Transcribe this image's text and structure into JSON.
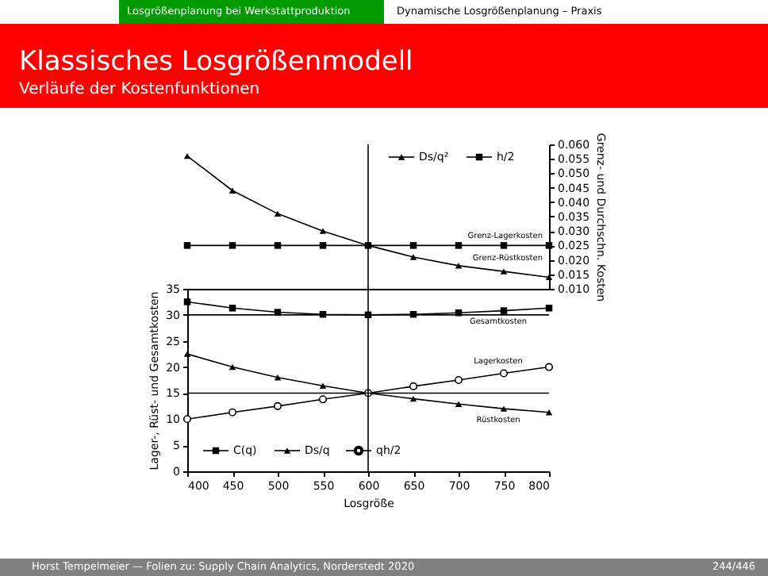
{
  "chart_data": [
    {
      "type": "line",
      "title": "Klassisches Losgrößenmodell",
      "subtitle": "Verläufe der Kostenfunktionen",
      "y2label": "Grenz- und Durchschn. Kosten",
      "x": [
        400,
        450,
        500,
        550,
        600,
        650,
        700,
        750,
        800
      ],
      "series": [
        {
          "name": "Ds/q²",
          "color": "#000000",
          "marker": "triangle",
          "axis": "y2",
          "values": [
            0.056,
            0.044,
            0.036,
            0.03,
            0.025,
            0.021,
            0.018,
            0.016,
            0.014
          ]
        },
        {
          "name": "h/2",
          "color": "#000000",
          "marker": "square",
          "axis": "y2",
          "values": [
            0.025,
            0.025,
            0.025,
            0.025,
            0.025,
            0.025,
            0.025,
            0.025,
            0.025
          ]
        }
      ],
      "xlim": [
        400,
        800
      ],
      "y2lim": [
        0.01,
        0.06
      ],
      "y2ticks": [
        {
          "value": 0.01,
          "label": "0.010"
        },
        {
          "value": 0.015,
          "label": "0.015"
        },
        {
          "value": 0.02,
          "label": "0.020"
        },
        {
          "value": 0.025,
          "label": "0.025"
        },
        {
          "value": 0.03,
          "label": "0.030"
        },
        {
          "value": 0.035,
          "label": "0.035"
        },
        {
          "value": 0.04,
          "label": "0.040"
        },
        {
          "value": 0.045,
          "label": "0.045"
        },
        {
          "value": 0.05,
          "label": "0.050"
        },
        {
          "value": 0.055,
          "label": "0.055"
        },
        {
          "value": 0.06,
          "label": "0.060"
        }
      ],
      "tick_labels": "y",
      "ref_lines": [
        {
          "axis": "x",
          "value": 600
        }
      ],
      "annotations": [
        "Losgrößenplanung bei Werkstattproduktion",
        "Dynamische Losgrößenplanung – Praxis",
        "Grenz-Lagerkosten",
        "Grenz-Rüstkosten"
      ],
      "grid": false,
      "legend": "top right"
    },
    {
      "type": "line",
      "xlabel": "Losgröße",
      "ylabel": "Lager-, Rüst- und Gesamtkosten",
      "x": [
        400,
        450,
        500,
        550,
        600,
        650,
        700,
        750,
        800
      ],
      "series": [
        {
          "name": "C(q)",
          "color": "#000000",
          "marker": "square",
          "values": [
            32.5,
            31.3,
            30.5,
            30.1,
            30,
            30.1,
            30.4,
            30.8,
            31.3
          ]
        },
        {
          "name": "Ds/q",
          "color": "#000000",
          "marker": "triangle",
          "values": [
            22.5,
            20,
            18,
            16.4,
            15,
            13.9,
            12.9,
            12,
            11.3
          ]
        },
        {
          "name": "qh/2",
          "color": "#000000",
          "marker": "circle",
          "values": [
            10,
            11.3,
            12.5,
            13.8,
            15,
            16.3,
            17.5,
            18.8,
            20
          ]
        }
      ],
      "xlim": [
        400,
        800
      ],
      "xticks": [
        400,
        450,
        500,
        550,
        600,
        650,
        700,
        750,
        800
      ],
      "ylim": [
        0,
        35
      ],
      "yticks": [
        0,
        5,
        10,
        15,
        20,
        25,
        30,
        35
      ],
      "ref_lines": [
        {
          "axis": "y",
          "value": 30
        },
        {
          "axis": "y",
          "value": 15
        },
        {
          "axis": "x",
          "value": 600
        }
      ],
      "annotations": [
        "Horst Tempelmeier — Folien zu: Supply Chain Analytics, Norderstedt 2020",
        "244/446",
        "Gesamtkosten",
        "Lagerkosten",
        "Rüstkosten"
      ],
      "grid": false,
      "legend": "bottom left"
    }
  ]
}
